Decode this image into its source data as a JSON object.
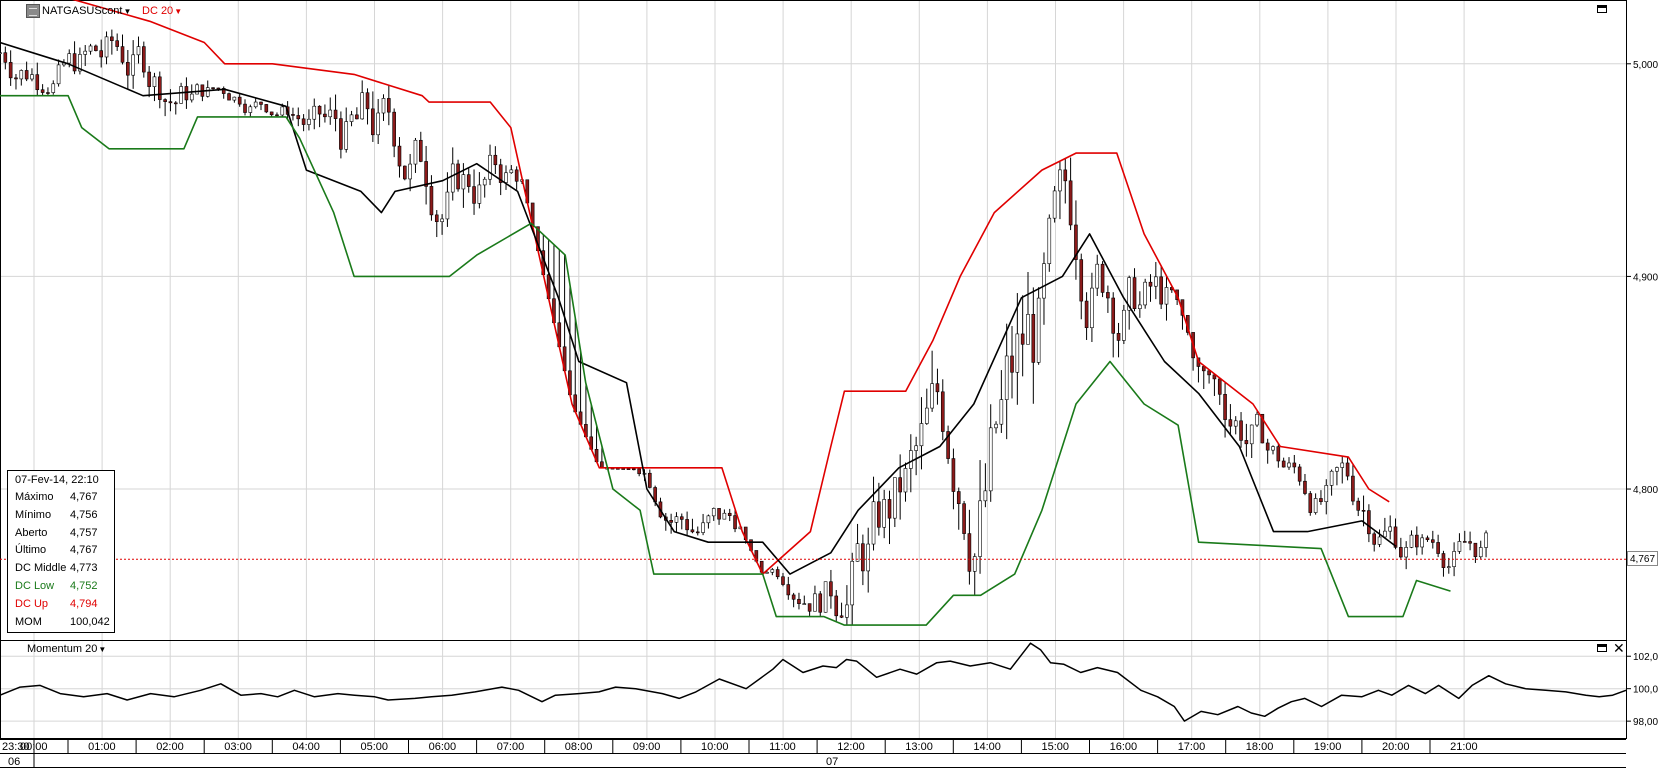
{
  "header": {
    "symbol": "NATGASUScont",
    "indicator": "DC 20",
    "indicator_color": "#e00000"
  },
  "momentum_panel": {
    "label": "Momentum 20"
  },
  "data_window": {
    "datetime": "07-Fev-14, 22:10",
    "rows": [
      {
        "label": "Máximo",
        "value": "4,767",
        "color": "#000000"
      },
      {
        "label": "Mínimo",
        "value": "4,756",
        "color": "#000000"
      },
      {
        "label": "Aberto",
        "value": "4,757",
        "color": "#000000"
      },
      {
        "label": "Último",
        "value": "4,767",
        "color": "#000000"
      },
      {
        "label": "DC Middle",
        "value": "4,773",
        "color": "#000000"
      },
      {
        "label": "DC Low",
        "value": "4,752",
        "color": "#1a7a1a"
      },
      {
        "label": "DC Up",
        "value": "4,794",
        "color": "#e00000"
      },
      {
        "label": "MOM",
        "value": "100,042",
        "color": "#000000"
      }
    ]
  },
  "last_price_label": "4,767",
  "chart_data": [
    {
      "type": "candlestick",
      "title": "NATGASUScont",
      "x_time_labels": [
        "23:30",
        "00:00",
        "01:00",
        "02:00",
        "03:00",
        "04:00",
        "05:00",
        "06:00",
        "07:00",
        "08:00",
        "09:00",
        "10:00",
        "11:00",
        "12:00",
        "13:00",
        "14:00",
        "15:00",
        "16:00",
        "17:00",
        "18:00",
        "19:00",
        "20:00",
        "21:00"
      ],
      "x_date_labels": [
        "06",
        "07"
      ],
      "y_tick_labels": [
        "5,000",
        "4,900",
        "4,800"
      ],
      "ylim": [
        4.729,
        5.03
      ],
      "last_price": 4.767,
      "grid": true,
      "series": [
        {
          "name": "DC Up",
          "color": "#e00000",
          "points": [
            [
              0,
              5.04
            ],
            [
              2.2,
              5.02
            ],
            [
              3,
              5.01
            ],
            [
              3.3,
              5.0
            ],
            [
              4,
              5.0
            ],
            [
              5.2,
              4.995
            ],
            [
              6.2,
              4.985
            ],
            [
              6.3,
              4.982
            ],
            [
              7.2,
              4.982
            ],
            [
              7.5,
              4.97
            ],
            [
              8.4,
              4.84
            ],
            [
              8.8,
              4.81
            ],
            [
              10.6,
              4.81
            ],
            [
              10.9,
              4.78
            ],
            [
              11.2,
              4.76
            ],
            [
              11.9,
              4.78
            ],
            [
              12.2,
              4.82
            ],
            [
              12.4,
              4.846
            ],
            [
              13.3,
              4.846
            ],
            [
              13.7,
              4.87
            ],
            [
              14.1,
              4.9
            ],
            [
              14.6,
              4.93
            ],
            [
              15.3,
              4.95
            ],
            [
              15.8,
              4.958
            ],
            [
              16.4,
              4.958
            ],
            [
              16.8,
              4.92
            ],
            [
              17.3,
              4.89
            ],
            [
              17.6,
              4.86
            ],
            [
              18.4,
              4.84
            ],
            [
              18.8,
              4.82
            ],
            [
              19.8,
              4.815
            ],
            [
              20.1,
              4.8
            ],
            [
              20.4,
              4.794
            ]
          ]
        },
        {
          "name": "DC Middle",
          "color": "#000000",
          "points": [
            [
              0,
              5.01
            ],
            [
              1,
              5.0
            ],
            [
              2.1,
              4.985
            ],
            [
              3.3,
              4.988
            ],
            [
              4.2,
              4.98
            ],
            [
              4.5,
              4.95
            ],
            [
              5.3,
              4.94
            ],
            [
              5.6,
              4.93
            ],
            [
              5.8,
              4.94
            ],
            [
              6.5,
              4.945
            ],
            [
              7.0,
              4.953
            ],
            [
              7.6,
              4.94
            ],
            [
              8.2,
              4.89
            ],
            [
              8.5,
              4.86
            ],
            [
              9.2,
              4.85
            ],
            [
              9.5,
              4.8
            ],
            [
              9.9,
              4.78
            ],
            [
              10.4,
              4.775
            ],
            [
              11.2,
              4.775
            ],
            [
              11.6,
              4.76
            ],
            [
              12.2,
              4.77
            ],
            [
              12.6,
              4.79
            ],
            [
              13.2,
              4.81
            ],
            [
              13.8,
              4.82
            ],
            [
              14.3,
              4.84
            ],
            [
              15.0,
              4.89
            ],
            [
              15.6,
              4.9
            ],
            [
              16.0,
              4.92
            ],
            [
              16.5,
              4.89
            ],
            [
              17.1,
              4.86
            ],
            [
              17.6,
              4.845
            ],
            [
              18.2,
              4.82
            ],
            [
              18.7,
              4.78
            ],
            [
              19.2,
              4.78
            ],
            [
              20.0,
              4.785
            ],
            [
              20.5,
              4.773
            ]
          ]
        },
        {
          "name": "DC Low",
          "color": "#1a7a1a",
          "points": [
            [
              0,
              4.985
            ],
            [
              1,
              4.985
            ],
            [
              1.2,
              4.97
            ],
            [
              1.6,
              4.96
            ],
            [
              2.7,
              4.96
            ],
            [
              2.9,
              4.975
            ],
            [
              4.2,
              4.975
            ],
            [
              4.4,
              4.965
            ],
            [
              4.9,
              4.93
            ],
            [
              5.2,
              4.9
            ],
            [
              6.6,
              4.9
            ],
            [
              7.0,
              4.91
            ],
            [
              7.8,
              4.925
            ],
            [
              8.3,
              4.91
            ],
            [
              8.6,
              4.85
            ],
            [
              9.0,
              4.8
            ],
            [
              9.4,
              4.79
            ],
            [
              9.6,
              4.76
            ],
            [
              11.2,
              4.76
            ],
            [
              11.4,
              4.74
            ],
            [
              12.1,
              4.74
            ],
            [
              12.4,
              4.736
            ],
            [
              13.6,
              4.736
            ],
            [
              14.0,
              4.75
            ],
            [
              14.4,
              4.75
            ],
            [
              14.9,
              4.76
            ],
            [
              15.3,
              4.79
            ],
            [
              15.8,
              4.84
            ],
            [
              16.3,
              4.86
            ],
            [
              16.8,
              4.84
            ],
            [
              17.3,
              4.83
            ],
            [
              17.6,
              4.775
            ],
            [
              19.4,
              4.772
            ],
            [
              19.8,
              4.74
            ],
            [
              20.6,
              4.74
            ],
            [
              20.8,
              4.757
            ],
            [
              21.3,
              4.752
            ]
          ]
        }
      ]
    },
    {
      "type": "line",
      "title": "Momentum 20",
      "y_tick_labels": [
        "102,0",
        "100,0",
        "98,00"
      ],
      "ylim": [
        96.9,
        103.0
      ],
      "series": [
        {
          "name": "Momentum 20",
          "color": "#000000",
          "points": [
            [
              0,
              99.6
            ],
            [
              0.6,
              100.1
            ],
            [
              1.2,
              100.2
            ],
            [
              1.8,
              99.7
            ],
            [
              2.5,
              99.5
            ],
            [
              3.2,
              99.7
            ],
            [
              3.8,
              99.3
            ],
            [
              4.5,
              99.7
            ],
            [
              5.2,
              99.5
            ],
            [
              6.0,
              99.9
            ],
            [
              6.6,
              100.3
            ],
            [
              7.2,
              99.6
            ],
            [
              7.8,
              99.7
            ],
            [
              8.3,
              99.5
            ],
            [
              8.8,
              99.9
            ],
            [
              9.4,
              99.5
            ],
            [
              10.1,
              99.7
            ],
            [
              10.6,
              99.6
            ],
            [
              11.2,
              99.5
            ],
            [
              11.6,
              99.3
            ],
            [
              12.4,
              99.4
            ],
            [
              12.9,
              99.5
            ],
            [
              13.5,
              99.6
            ],
            [
              14.2,
              99.8
            ],
            [
              15.0,
              100.1
            ],
            [
              15.5,
              99.9
            ],
            [
              16.2,
              99.2
            ],
            [
              16.6,
              99.6
            ],
            [
              17.3,
              99.7
            ],
            [
              17.9,
              99.8
            ],
            [
              18.4,
              100.1
            ],
            [
              19.0,
              100.0
            ],
            [
              19.8,
              99.7
            ],
            [
              20.3,
              99.4
            ],
            [
              20.8,
              99.8
            ],
            [
              21.5,
              100.6
            ],
            [
              22.3,
              100.0
            ],
            [
              23.1,
              101.2
            ],
            [
              23.4,
              101.8
            ],
            [
              24.0,
              101.0
            ],
            [
              24.6,
              101.4
            ],
            [
              25.0,
              101.3
            ],
            [
              25.3,
              101.8
            ],
            [
              25.6,
              101.7
            ],
            [
              26.2,
              100.7
            ],
            [
              26.9,
              101.2
            ],
            [
              27.4,
              100.9
            ],
            [
              28.0,
              101.6
            ],
            [
              28.4,
              101.7
            ],
            [
              29.0,
              101.4
            ],
            [
              29.6,
              101.6
            ],
            [
              30.2,
              101.2
            ],
            [
              30.8,
              102.8
            ],
            [
              31.1,
              102.4
            ],
            [
              31.4,
              101.6
            ],
            [
              31.8,
              101.5
            ],
            [
              32.3,
              101.0
            ],
            [
              32.8,
              101.3
            ],
            [
              33.4,
              101.0
            ],
            [
              34.1,
              99.9
            ],
            [
              34.6,
              99.5
            ],
            [
              35.1,
              98.9
            ],
            [
              35.4,
              98.0
            ],
            [
              35.9,
              98.6
            ],
            [
              36.4,
              98.4
            ],
            [
              37.0,
              98.9
            ],
            [
              37.4,
              98.5
            ],
            [
              37.8,
              98.3
            ],
            [
              38.2,
              98.8
            ],
            [
              38.6,
              99.2
            ],
            [
              39.0,
              99.4
            ],
            [
              39.5,
              98.9
            ],
            [
              40.1,
              99.6
            ],
            [
              40.7,
              99.5
            ],
            [
              41.2,
              99.9
            ],
            [
              41.6,
              99.6
            ],
            [
              42.1,
              100.2
            ],
            [
              42.6,
              99.7
            ],
            [
              43.0,
              100.2
            ],
            [
              43.6,
              99.4
            ],
            [
              44.0,
              100.2
            ],
            [
              44.5,
              100.8
            ],
            [
              45.0,
              100.3
            ],
            [
              45.6,
              100.0
            ],
            [
              46.2,
              99.9
            ],
            [
              46.8,
              99.8
            ],
            [
              47.4,
              99.6
            ],
            [
              47.8,
              99.5
            ],
            [
              48.2,
              99.6
            ],
            [
              48.6,
              99.9
            ]
          ]
        }
      ]
    }
  ]
}
